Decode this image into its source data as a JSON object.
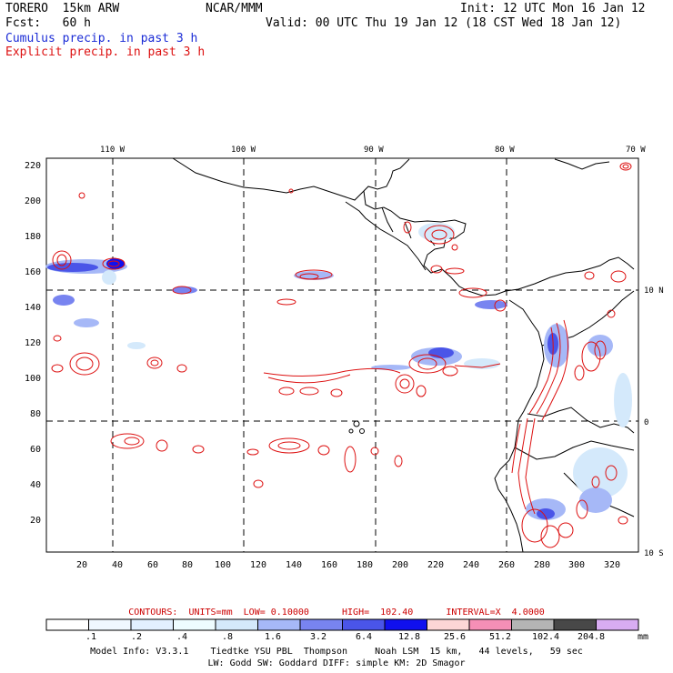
{
  "header": {
    "model": "TORERO  15km ARW",
    "center": "NCAR/MMM",
    "init": "Init: 12 UTC Mon 16 Jan 12",
    "fcst": "Fcst:   60 h",
    "valid": "Valid: 00 UTC Thu 19 Jan 12 (18 CST Wed 18 Jan 12)",
    "legend_cumulus": "Cumulus precip. in past 3 h",
    "legend_explicit": "Explicit precip. in past 3 h"
  },
  "colors": {
    "cumulus": "#1a2bd6",
    "explicit": "#dd1111",
    "land": "#000000"
  },
  "map": {
    "lon_labels": [
      "110 W",
      "100 W",
      "90 W",
      "80 W",
      "70 W"
    ],
    "lat_labels": [
      "10 N",
      "0",
      "10 S"
    ],
    "y_ticks": [
      "220",
      "200",
      "180",
      "160",
      "140",
      "120",
      "100",
      "80",
      "60",
      "40",
      "20"
    ],
    "x_ticks": [
      "20",
      "40",
      "60",
      "80",
      "100",
      "120",
      "140",
      "160",
      "180",
      "200",
      "220",
      "240",
      "260",
      "280",
      "300",
      "320"
    ]
  },
  "contours_line": "CONTOURS:  UNITS=mm  LOW= 0.10000      HIGH=  102.40      INTERVAL=X  4.0000",
  "colorbar": {
    "labels": [
      ".1",
      ".2",
      ".4",
      ".8",
      "1.6",
      "3.2",
      "6.4",
      "12.8",
      "25.6",
      "51.2",
      "102.4",
      "204.8"
    ],
    "unit": "mm",
    "colors": [
      "#ffffff",
      "#f0f7ff",
      "#e2f0ff",
      "#eefcff",
      "#d4e9fb",
      "#a6b8f7",
      "#7884f0",
      "#4a55e8",
      "#1010ee",
      "#fcd6d6",
      "#f58fb6",
      "#b4b4b4",
      "#484848",
      "#d8acf2"
    ]
  },
  "footer": {
    "line1": "Model Info: V3.3.1    Tiedtke YSU PBL  Thompson     Noah LSM  15 km,   44 levels,   59 sec",
    "line2": "LW: Godd SW: Goddard DIFF: simple KM: 2D Smagor"
  }
}
